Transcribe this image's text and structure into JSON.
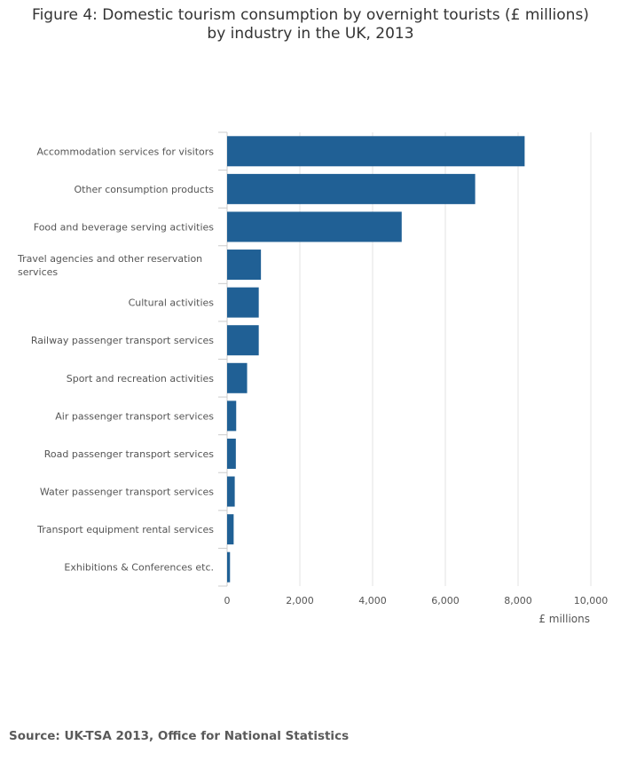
{
  "title_line1": "Figure 4: Domestic tourism consumption by overnight tourists (£ millions)",
  "title_line2": "by industry in the UK, 2013",
  "source": "Source: UK-TSA 2013, Office for National Statistics",
  "colors": {
    "bar": "#206095",
    "grid": "#e3e3e3",
    "axis": "#cccccc",
    "text": "#555555"
  },
  "chart_data": {
    "type": "bar",
    "orientation": "horizontal",
    "categories": [
      "Accommodation services for visitors",
      "Other consumption products",
      "Food and beverage serving activities",
      "Travel agencies and other reservation services",
      "Cultural activities",
      "Railway passenger transport services",
      "Sport and recreation activities",
      "Air passenger transport services",
      "Road passenger transport services",
      "Water passenger transport services",
      "Transport equipment rental services",
      "Exhibitions & Conferences etc."
    ],
    "values": [
      8180,
      6820,
      4800,
      930,
      870,
      870,
      550,
      250,
      240,
      210,
      180,
      80
    ],
    "xlabel": "£ millions",
    "ylabel": "",
    "xlim": [
      0,
      10000
    ],
    "xticks": [
      0,
      2000,
      4000,
      6000,
      8000,
      10000
    ],
    "xtick_labels": [
      "0",
      "2,000",
      "4,000",
      "6,000",
      "8,000",
      "10,000"
    ],
    "grid": true,
    "legend": "none"
  }
}
